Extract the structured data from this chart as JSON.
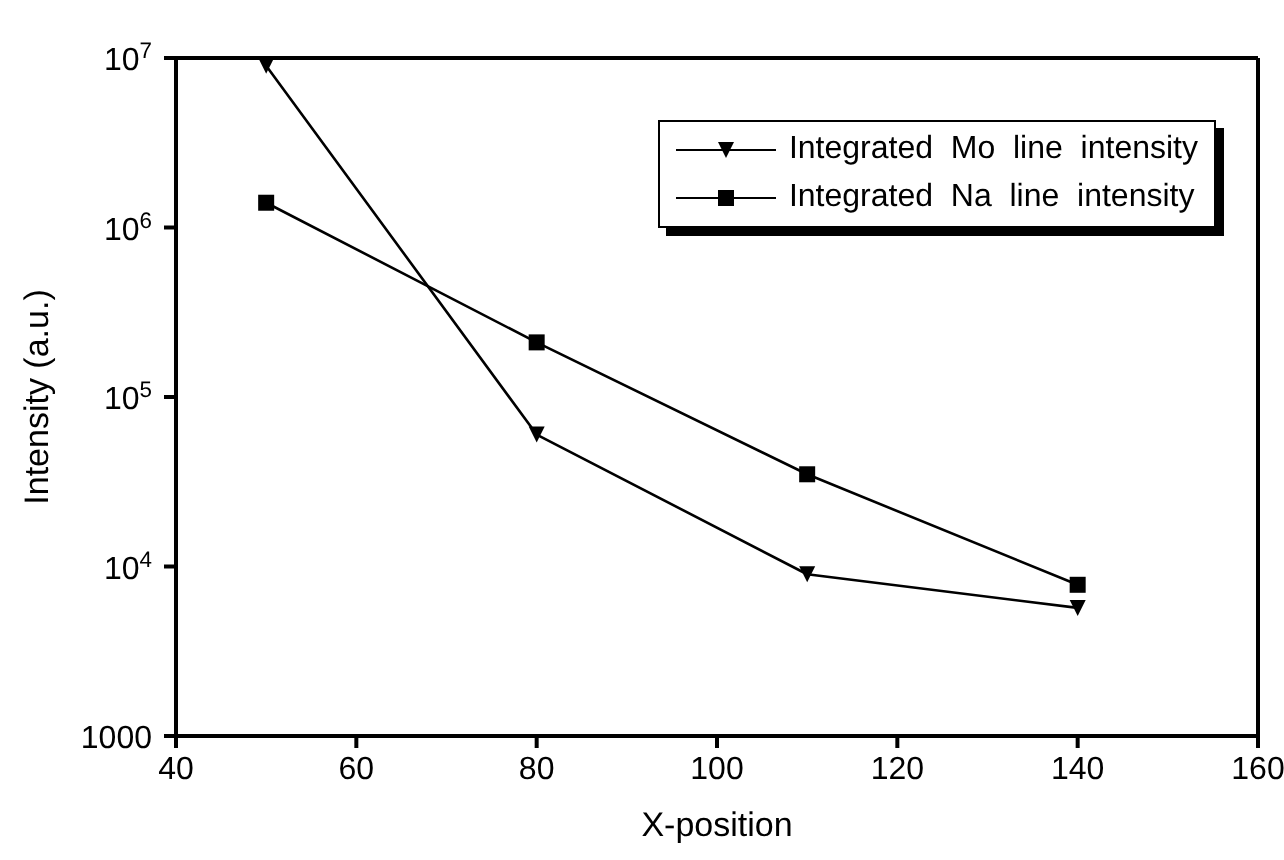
{
  "chart_data": {
    "type": "line",
    "xlabel": "X-position",
    "ylabel": "Intensity  (a.u.)",
    "x": [
      50,
      80,
      110,
      140
    ],
    "series": [
      {
        "name": "Integrated  Mo  line  intensity",
        "color": "#000000",
        "marker": "triangle",
        "values": [
          9000000,
          60000,
          9000,
          5700
        ]
      },
      {
        "name": "Integrated  Na  line  intensity",
        "color": "#000000",
        "marker": "square",
        "values": [
          1400000,
          210000,
          35000,
          7800
        ]
      }
    ],
    "xlim": [
      40,
      160
    ],
    "xticks": [
      40,
      60,
      80,
      100,
      120,
      140,
      160
    ],
    "ylim": [
      1000,
      10000000
    ],
    "yticks": [
      1000,
      {
        "value": 10000,
        "label": "10$^{4}$"
      },
      {
        "value": 100000,
        "label": "10$^{5}$"
      },
      {
        "value": 1000000,
        "label": "10$^{6}$"
      },
      {
        "value": 10000000,
        "label": "10$^{7}$"
      }
    ],
    "log": "y",
    "legend": "top right",
    "line_style": "solid"
  }
}
